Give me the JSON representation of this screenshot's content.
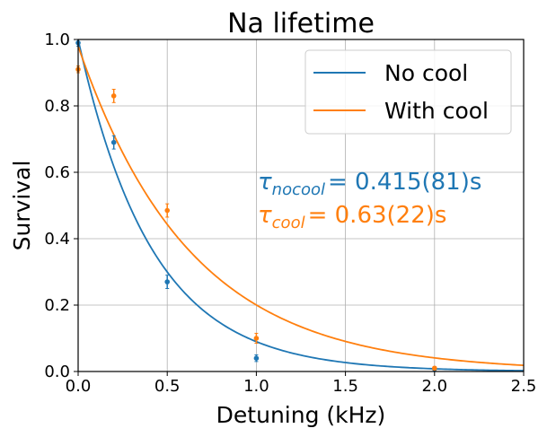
{
  "chart_data": {
    "type": "line",
    "title": "Na lifetime",
    "xlabel": "Detuning (kHz)",
    "ylabel": "Survival",
    "xlim": [
      0,
      2.5
    ],
    "ylim": [
      0,
      1.0
    ],
    "xticks": [
      0.0,
      0.5,
      1.0,
      1.5,
      2.0,
      2.5
    ],
    "xtick_labels": [
      "0.0",
      "0.5",
      "1.0",
      "1.5",
      "2.0",
      "2.5"
    ],
    "yticks": [
      0.0,
      0.2,
      0.4,
      0.6,
      0.8,
      1.0
    ],
    "ytick_labels": [
      "0.0",
      "0.2",
      "0.4",
      "0.6",
      "0.8",
      "1.0"
    ],
    "grid": true,
    "legend_position": "top-right",
    "series": [
      {
        "name": "No cool",
        "color": "#1f77b4",
        "fit": {
          "model": "exponential decay",
          "amplitude": 1.0,
          "tau": 0.415
        },
        "points": [
          {
            "x": 0.0,
            "y": 0.99,
            "err": 0.01
          },
          {
            "x": 0.2,
            "y": 0.69,
            "err": 0.02
          },
          {
            "x": 0.5,
            "y": 0.27,
            "err": 0.02
          },
          {
            "x": 1.0,
            "y": 0.04,
            "err": 0.01
          },
          {
            "x": 2.0,
            "y": 0.008,
            "err": 0.005
          }
        ]
      },
      {
        "name": "With cool",
        "color": "#ff7f0e",
        "fit": {
          "model": "exponential decay",
          "amplitude": 0.98,
          "tau": 0.63
        },
        "points": [
          {
            "x": 0.0,
            "y": 0.91,
            "err": 0.01
          },
          {
            "x": 0.2,
            "y": 0.83,
            "err": 0.02
          },
          {
            "x": 0.5,
            "y": 0.485,
            "err": 0.02
          },
          {
            "x": 1.0,
            "y": 0.1,
            "err": 0.015
          },
          {
            "x": 2.0,
            "y": 0.01,
            "err": 0.005
          }
        ]
      }
    ],
    "annotations": [
      {
        "symbol": "τ",
        "subscript": "nocool",
        "value": "= 0.415(81)s",
        "color": "#1f77b4"
      },
      {
        "symbol": "τ",
        "subscript": "cool",
        "value": "= 0.63(22)s",
        "color": "#ff7f0e"
      }
    ]
  }
}
